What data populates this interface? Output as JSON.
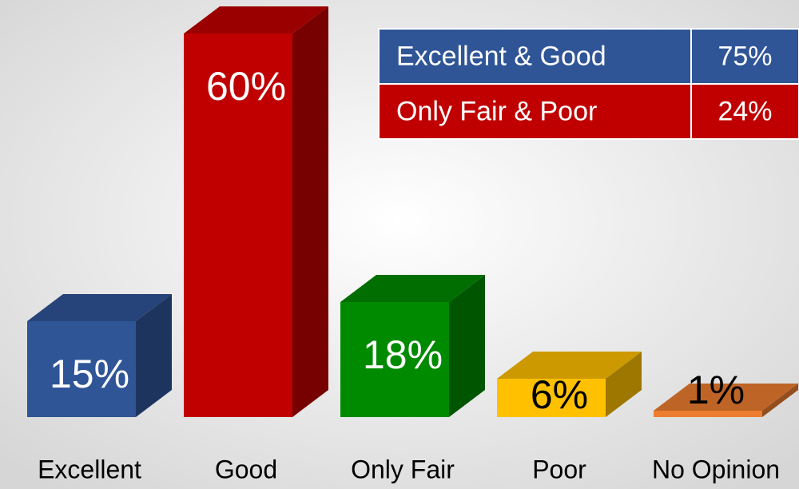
{
  "chart_data": {
    "type": "bar3d",
    "categories": [
      "Excellent",
      "Good",
      "Only Fair",
      "Poor",
      "No Opinion"
    ],
    "values": [
      15,
      60,
      18,
      6,
      1
    ],
    "value_labels": [
      "15%",
      "60%",
      "18%",
      "6%",
      "1%"
    ],
    "colors": [
      "#2f5597",
      "#c00000",
      "#008a00",
      "#ffc000",
      "#ed7d31"
    ],
    "label_colors": [
      "#ffffff",
      "#ffffff",
      "#ffffff",
      "#000000",
      "#000000"
    ]
  },
  "table": {
    "rows": [
      [
        "Excellent & Good",
        "75%"
      ],
      [
        "Only Fair & Poor",
        "24%"
      ]
    ],
    "colors": [
      "#2f5597",
      "#c00000"
    ]
  }
}
